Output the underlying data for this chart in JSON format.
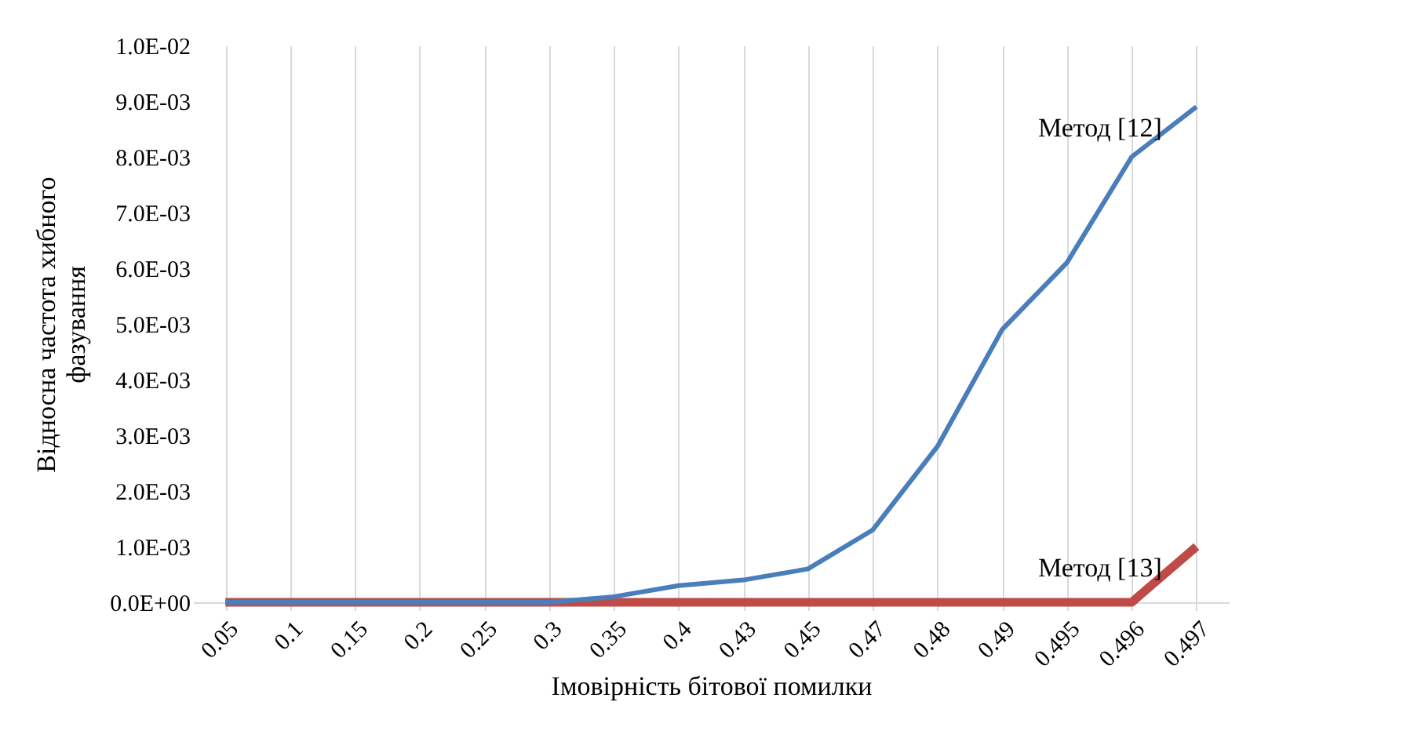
{
  "chart_data": {
    "type": "line",
    "xlabel": "Імовірність бітової помилки",
    "ylabel": "Відносна частота хибного фазування",
    "categories": [
      "0.05",
      "0.1",
      "0.15",
      "0.2",
      "0.25",
      "0.3",
      "0.35",
      "0.4",
      "0.43",
      "0.45",
      "0.47",
      "0.48",
      "0.49",
      "0.495",
      "0.496",
      "0.497"
    ],
    "series": [
      {
        "name": "Метод [12]",
        "color": "#4a7ebb",
        "values": [
          0,
          0,
          0,
          0,
          0,
          0,
          0.0001,
          0.0003,
          0.0004,
          0.0006,
          0.0013,
          0.0028,
          0.0049,
          0.0061,
          0.008,
          0.0089
        ]
      },
      {
        "name": "Метод [13]",
        "color": "#be4b48",
        "values": [
          0,
          0,
          0,
          0,
          0,
          0,
          0,
          0,
          0,
          0,
          0,
          0,
          0,
          0,
          0,
          0.001
        ]
      }
    ],
    "ylim": [
      0,
      0.01
    ],
    "yticks": [
      {
        "value": 0,
        "label": "0.0E+00"
      },
      {
        "value": 0.001,
        "label": "1.0E-03"
      },
      {
        "value": 0.002,
        "label": "2.0E-03"
      },
      {
        "value": 0.003,
        "label": "3.0E-03"
      },
      {
        "value": 0.004,
        "label": "4.0E-03"
      },
      {
        "value": 0.005,
        "label": "5.0E-03"
      },
      {
        "value": 0.006,
        "label": "6.0E-03"
      },
      {
        "value": 0.007,
        "label": "7.0E-03"
      },
      {
        "value": 0.008,
        "label": "8.0E-03"
      },
      {
        "value": 0.009,
        "label": "9.0E-03"
      },
      {
        "value": 0.01,
        "label": "1.0E-02"
      }
    ],
    "grid": "x",
    "legend": false,
    "line_style": "solid"
  }
}
